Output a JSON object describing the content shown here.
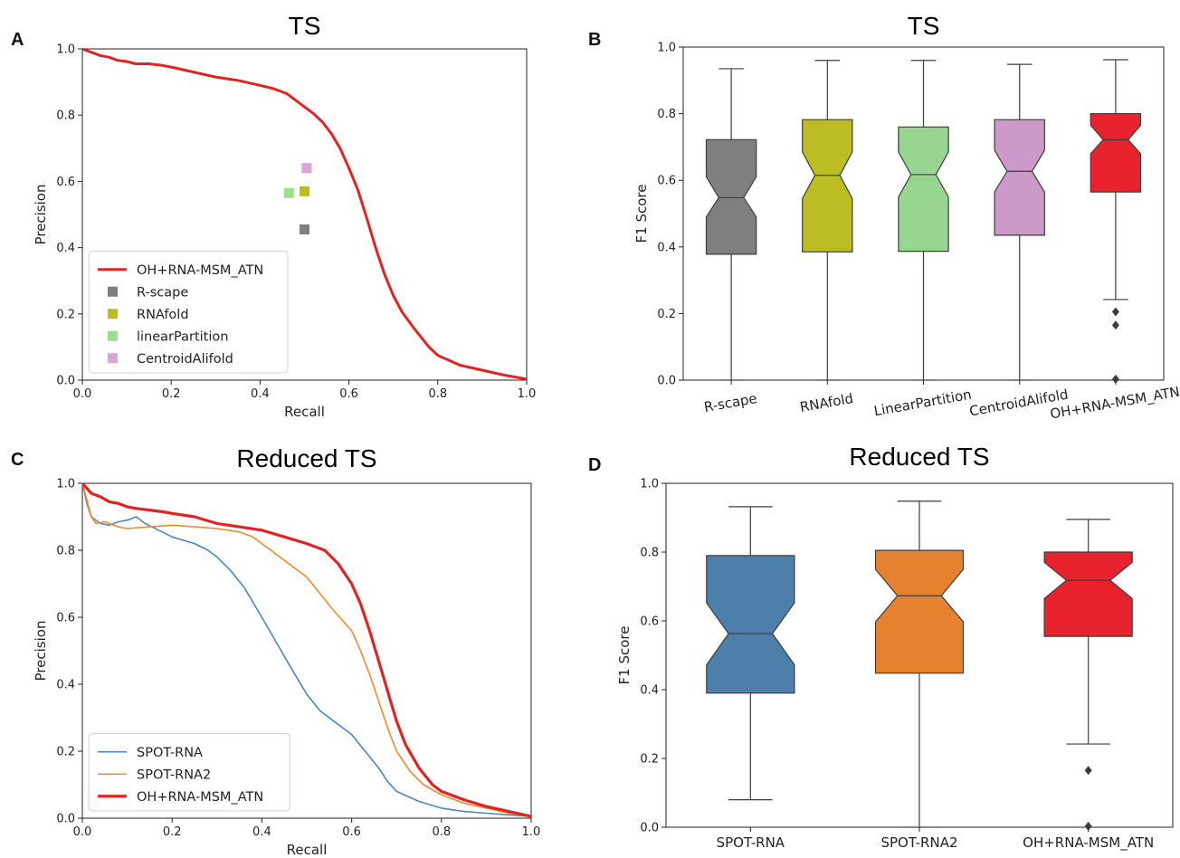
{
  "chart_data": [
    {
      "panel": "A",
      "type": "line",
      "title": "TS",
      "xlabel": "Recall",
      "ylabel": "Precision",
      "xlim": [
        0,
        1
      ],
      "ylim": [
        0,
        1
      ],
      "xticks": [
        "0.0",
        "0.2",
        "0.4",
        "0.6",
        "0.8",
        "1.0"
      ],
      "yticks": [
        "0.0",
        "0.2",
        "0.4",
        "0.6",
        "0.8",
        "1.0"
      ],
      "legend_position": "lower-left",
      "series": [
        {
          "name": "OH+RNA-MSM_ATN",
          "kind": "line",
          "color": "#e02323",
          "x": [
            0.0,
            0.02,
            0.04,
            0.06,
            0.08,
            0.1,
            0.12,
            0.15,
            0.18,
            0.2,
            0.25,
            0.3,
            0.35,
            0.4,
            0.43,
            0.46,
            0.48,
            0.5,
            0.52,
            0.54,
            0.56,
            0.58,
            0.6,
            0.62,
            0.64,
            0.66,
            0.68,
            0.7,
            0.72,
            0.75,
            0.78,
            0.8,
            0.85,
            0.9,
            0.95,
            1.0
          ],
          "y": [
            1.0,
            0.99,
            0.98,
            0.975,
            0.965,
            0.962,
            0.955,
            0.955,
            0.95,
            0.945,
            0.93,
            0.915,
            0.905,
            0.89,
            0.88,
            0.865,
            0.845,
            0.825,
            0.805,
            0.78,
            0.745,
            0.7,
            0.64,
            0.575,
            0.49,
            0.4,
            0.32,
            0.255,
            0.205,
            0.15,
            0.1,
            0.075,
            0.045,
            0.03,
            0.015,
            0.003
          ]
        },
        {
          "name": "R-scape",
          "kind": "point",
          "color": "#7f7f7f",
          "x": [
            0.5
          ],
          "y": [
            0.455
          ]
        },
        {
          "name": "RNAfold",
          "kind": "point",
          "color": "#bcbd22",
          "x": [
            0.5
          ],
          "y": [
            0.57
          ]
        },
        {
          "name": "linearPartition",
          "kind": "point",
          "color": "#98df8a",
          "x": [
            0.465
          ],
          "y": [
            0.565
          ]
        },
        {
          "name": "CentroidAlifold",
          "kind": "point",
          "color": "#dca3d6",
          "x": [
            0.505
          ],
          "y": [
            0.64
          ]
        }
      ]
    },
    {
      "panel": "B",
      "type": "box",
      "title": "TS",
      "xlabel": "",
      "ylabel": "F1 Score",
      "ylim": [
        0,
        1
      ],
      "yticks": [
        "0.0",
        "0.2",
        "0.4",
        "0.6",
        "0.8",
        "1.0"
      ],
      "rotated_category_labels": true,
      "boxes": [
        {
          "name": "R-scape",
          "color": "#7f7f7f",
          "min": 0.0,
          "q1": 0.378,
          "median": 0.548,
          "q3": 0.722,
          "max": 0.935,
          "notch_low": 0.49,
          "notch_high": 0.61,
          "outliers": []
        },
        {
          "name": "RNAfold",
          "color": "#bcbd22",
          "min": 0.0,
          "q1": 0.385,
          "median": 0.615,
          "q3": 0.782,
          "max": 0.96,
          "notch_low": 0.545,
          "notch_high": 0.685,
          "outliers": []
        },
        {
          "name": "LinearPartition",
          "color": "#98d591",
          "min": 0.0,
          "q1": 0.387,
          "median": 0.617,
          "q3": 0.76,
          "max": 0.96,
          "notch_low": 0.55,
          "notch_high": 0.685,
          "outliers": []
        },
        {
          "name": "CentroidAlifold",
          "color": "#cc99c9",
          "min": 0.0,
          "q1": 0.435,
          "median": 0.627,
          "q3": 0.782,
          "max": 0.948,
          "notch_low": 0.565,
          "notch_high": 0.69,
          "outliers": []
        },
        {
          "name": "OH+RNA-MSM_ATN",
          "color": "#e8232d",
          "min": 0.242,
          "q1": 0.565,
          "median": 0.722,
          "q3": 0.8,
          "max": 0.962,
          "notch_low": 0.68,
          "notch_high": 0.765,
          "outliers": [
            0.205,
            0.165,
            0.003
          ]
        }
      ]
    },
    {
      "panel": "C",
      "type": "line",
      "title": "Reduced TS",
      "xlabel": "Recall",
      "ylabel": "Precision",
      "xlim": [
        0,
        1
      ],
      "ylim": [
        0,
        1
      ],
      "xticks": [
        "0.0",
        "0.2",
        "0.4",
        "0.6",
        "0.8",
        "1.0"
      ],
      "yticks": [
        "0.0",
        "0.2",
        "0.4",
        "0.6",
        "0.8",
        "1.0"
      ],
      "legend_position": "lower-left",
      "series": [
        {
          "name": "SPOT-RNA",
          "color": "#4c86c0",
          "width": 1.6,
          "x": [
            0.0,
            0.01,
            0.02,
            0.04,
            0.06,
            0.08,
            0.1,
            0.12,
            0.14,
            0.17,
            0.2,
            0.25,
            0.28,
            0.3,
            0.33,
            0.36,
            0.4,
            0.43,
            0.46,
            0.5,
            0.53,
            0.56,
            0.6,
            0.63,
            0.66,
            0.68,
            0.7,
            0.75,
            0.8,
            0.85,
            0.9,
            0.95,
            1.0
          ],
          "y": [
            1.0,
            0.94,
            0.9,
            0.88,
            0.875,
            0.885,
            0.89,
            0.9,
            0.88,
            0.86,
            0.84,
            0.82,
            0.8,
            0.78,
            0.74,
            0.69,
            0.6,
            0.53,
            0.46,
            0.37,
            0.32,
            0.29,
            0.25,
            0.2,
            0.15,
            0.11,
            0.08,
            0.05,
            0.03,
            0.02,
            0.015,
            0.01,
            0.005
          ]
        },
        {
          "name": "SPOT-RNA2",
          "color": "#f08a2a",
          "width": 1.6,
          "x": [
            0.0,
            0.01,
            0.02,
            0.03,
            0.05,
            0.08,
            0.1,
            0.15,
            0.2,
            0.25,
            0.3,
            0.35,
            0.38,
            0.4,
            0.43,
            0.46,
            0.5,
            0.53,
            0.56,
            0.6,
            0.62,
            0.64,
            0.66,
            0.68,
            0.7,
            0.73,
            0.76,
            0.8,
            0.85,
            0.9,
            0.95,
            1.0
          ],
          "y": [
            1.0,
            0.95,
            0.9,
            0.88,
            0.885,
            0.87,
            0.865,
            0.87,
            0.875,
            0.87,
            0.865,
            0.855,
            0.84,
            0.82,
            0.79,
            0.76,
            0.72,
            0.67,
            0.62,
            0.56,
            0.5,
            0.43,
            0.35,
            0.27,
            0.2,
            0.14,
            0.1,
            0.07,
            0.045,
            0.03,
            0.015,
            0.005
          ]
        },
        {
          "name": "OH+RNA-MSM_ATN",
          "color": "#e02323",
          "width": 3.2,
          "x": [
            0.0,
            0.01,
            0.02,
            0.04,
            0.06,
            0.08,
            0.1,
            0.12,
            0.15,
            0.18,
            0.2,
            0.25,
            0.3,
            0.35,
            0.4,
            0.45,
            0.5,
            0.54,
            0.57,
            0.6,
            0.62,
            0.64,
            0.66,
            0.68,
            0.7,
            0.72,
            0.75,
            0.78,
            0.8,
            0.85,
            0.9,
            0.95,
            1.0
          ],
          "y": [
            1.0,
            0.985,
            0.97,
            0.96,
            0.945,
            0.94,
            0.93,
            0.925,
            0.92,
            0.915,
            0.91,
            0.9,
            0.88,
            0.87,
            0.86,
            0.84,
            0.82,
            0.8,
            0.76,
            0.7,
            0.64,
            0.56,
            0.47,
            0.38,
            0.29,
            0.22,
            0.15,
            0.1,
            0.08,
            0.055,
            0.035,
            0.02,
            0.005
          ]
        }
      ]
    },
    {
      "panel": "D",
      "type": "box",
      "title": "Reduced TS",
      "xlabel": "",
      "ylabel": "F1 Score",
      "ylim": [
        0,
        1
      ],
      "yticks": [
        "0.0",
        "0.2",
        "0.4",
        "0.6",
        "0.8",
        "1.0"
      ],
      "rotated_category_labels": false,
      "boxes": [
        {
          "name": "SPOT-RNA",
          "color": "#4c80ab",
          "min": 0.08,
          "q1": 0.39,
          "median": 0.563,
          "q3": 0.79,
          "max": 0.932,
          "notch_low": 0.472,
          "notch_high": 0.652,
          "outliers": []
        },
        {
          "name": "SPOT-RNA2",
          "color": "#e6812f",
          "min": 0.0,
          "q1": 0.448,
          "median": 0.673,
          "q3": 0.805,
          "max": 0.948,
          "notch_low": 0.597,
          "notch_high": 0.75,
          "outliers": []
        },
        {
          "name": "OH+RNA-MSM_ATN",
          "color": "#e8232d",
          "min": 0.242,
          "q1": 0.555,
          "median": 0.718,
          "q3": 0.8,
          "max": 0.895,
          "notch_low": 0.665,
          "notch_high": 0.77,
          "outliers": [
            0.165,
            0.003
          ]
        }
      ]
    }
  ],
  "panel_labels": [
    "A",
    "B",
    "C",
    "D"
  ]
}
